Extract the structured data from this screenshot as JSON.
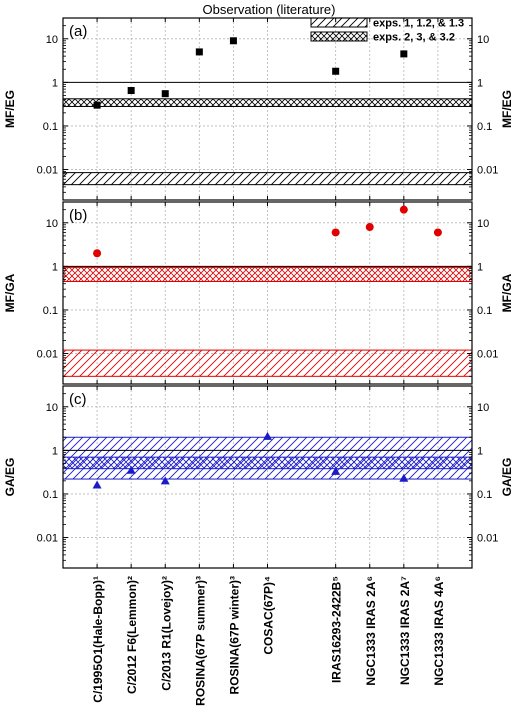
{
  "chart_data": {
    "type": "scatter",
    "title": "Observation (literature)",
    "categories": [
      "C/1995O1(Hale-Bopp)¹",
      "C/2012 F6(Lemmon)²",
      "C/2013 R1(Lovejoy)²",
      "ROSINA(67P summer)³",
      "ROSINA(67P winter)³",
      "COSAC(67P)⁴",
      "IRAS16293-2422B⁵",
      "NGC1333 IRAS 2A⁶",
      "NGC1333 IRAS 2A⁷",
      "NGC1333 IRAS 4A⁶"
    ],
    "category_positions": [
      1,
      2,
      3,
      4,
      5,
      6,
      8,
      9,
      10,
      11
    ],
    "xlim": [
      0,
      12
    ],
    "yscale": "log",
    "ylim": [
      0.002,
      30
    ],
    "yticks": [
      0.01,
      0.1,
      1,
      10
    ],
    "ytick_labels": [
      "0.01",
      "0.1",
      "1",
      "10"
    ],
    "grid": true,
    "legend": {
      "placement": "top-right",
      "entries": [
        {
          "label": "exps. 1, 1.2, & 1.3",
          "pattern": "hatch"
        },
        {
          "label": "exps. 2, 3, & 3.2",
          "pattern": "crosshatch"
        }
      ]
    },
    "panels": [
      {
        "label": "(a)",
        "ylabel": "MF/EG",
        "color": "#000000",
        "marker": "square",
        "refline": 1,
        "band_hatch": [
          0.0045,
          0.0085
        ],
        "band_crosshatch": [
          0.28,
          0.42
        ],
        "points": [
          {
            "x": 1,
            "y": 0.3
          },
          {
            "x": 2,
            "y": 0.65
          },
          {
            "x": 3,
            "y": 0.55
          },
          {
            "x": 4,
            "y": 5
          },
          {
            "x": 5,
            "y": 9
          },
          {
            "x": 8,
            "y": 1.8
          },
          {
            "x": 10,
            "y": 4.5
          }
        ]
      },
      {
        "label": "(b)",
        "ylabel": "MF/GA",
        "color": "#e00000",
        "marker": "circle",
        "refline": 1,
        "band_hatch": [
          0.003,
          0.012
        ],
        "band_crosshatch": [
          0.45,
          0.95
        ],
        "points": [
          {
            "x": 1,
            "y": 2
          },
          {
            "x": 8,
            "y": 6
          },
          {
            "x": 9,
            "y": 8
          },
          {
            "x": 10,
            "y": 20
          },
          {
            "x": 11,
            "y": 6
          }
        ]
      },
      {
        "label": "(c)",
        "ylabel": "GA/EG",
        "color": "#1b1bc8",
        "marker": "triangle",
        "refline": 1,
        "band_hatch": [
          0.22,
          2
        ],
        "band_crosshatch": [
          0.38,
          0.7
        ],
        "points": [
          {
            "x": 1,
            "y": 0.16
          },
          {
            "x": 2,
            "y": 0.35
          },
          {
            "x": 3,
            "y": 0.2
          },
          {
            "x": 6,
            "y": 2.1
          },
          {
            "x": 8,
            "y": 0.33
          },
          {
            "x": 10,
            "y": 0.23
          }
        ]
      }
    ]
  }
}
